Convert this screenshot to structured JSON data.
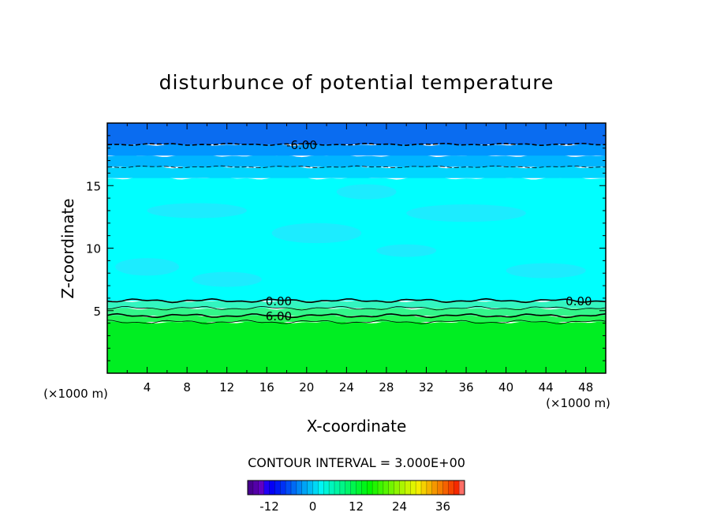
{
  "chart_data": {
    "type": "heatmap",
    "title": "disturbunce of potential temperature",
    "xlabel": "X-coordinate",
    "ylabel": "Z-coordinate",
    "x_unit": "(×1000 m)",
    "y_unit": "(×1000 m)",
    "xlim": [
      0,
      50
    ],
    "ylim": [
      0,
      20
    ],
    "x_ticks": [
      "4",
      "8",
      "12",
      "16",
      "20",
      "24",
      "28",
      "32",
      "36",
      "40",
      "44",
      "48"
    ],
    "y_ticks": [
      "5",
      "10",
      "15"
    ],
    "contour_interval_text": "CONTOUR INTERVAL = 3.000E+00",
    "contour_labels": [
      {
        "text": "-6.00",
        "x": 19.5,
        "z": 18.3
      },
      {
        "text": "0.00",
        "x": 17.2,
        "z": 5.8
      },
      {
        "text": "0.00",
        "x": 47.3,
        "z": 5.8
      },
      {
        "text": "6.00",
        "x": 17.2,
        "z": 4.6
      }
    ],
    "contour_levels": [
      {
        "value": -6,
        "z": 18.3,
        "style": "dashed-bold"
      },
      {
        "value": -3,
        "z": 16.5,
        "style": "dashed"
      },
      {
        "value": 0,
        "z": 5.8,
        "style": "solid-bold"
      },
      {
        "value": 3,
        "z": 5.2,
        "style": "solid"
      },
      {
        "value": 6,
        "z": 4.6,
        "style": "solid-bold"
      },
      {
        "value": 9,
        "z": 4.1,
        "style": "solid"
      }
    ],
    "field_layers": [
      {
        "z_from": 0,
        "z_to": 4.1,
        "value": 11,
        "color": "#00ee22"
      },
      {
        "z_from": 4.1,
        "z_to": 4.6,
        "value": 8,
        "color": "#22f555"
      },
      {
        "z_from": 4.6,
        "z_to": 5.2,
        "value": 5,
        "color": "#33f58a"
      },
      {
        "z_from": 5.2,
        "z_to": 5.8,
        "value": 2,
        "color": "#33f5c0"
      },
      {
        "z_from": 5.8,
        "z_to": 15.6,
        "value": -1,
        "color": "#00ffff"
      },
      {
        "z_from": 15.6,
        "z_to": 16.5,
        "value": -2,
        "color": "#00d5ff"
      },
      {
        "z_from": 16.5,
        "z_to": 17.4,
        "value": -4,
        "color": "#00b5ff"
      },
      {
        "z_from": 17.4,
        "z_to": 18.3,
        "value": -6,
        "color": "#0096ff"
      },
      {
        "z_from": 18.3,
        "z_to": 20,
        "value": -8,
        "color": "#0a6cf0"
      }
    ],
    "colorbar": {
      "range": [
        -18,
        42
      ],
      "ticks": [
        "-12",
        "0",
        "12",
        "24",
        "36"
      ],
      "tick_values": [
        -12,
        0,
        12,
        24,
        36
      ]
    }
  }
}
